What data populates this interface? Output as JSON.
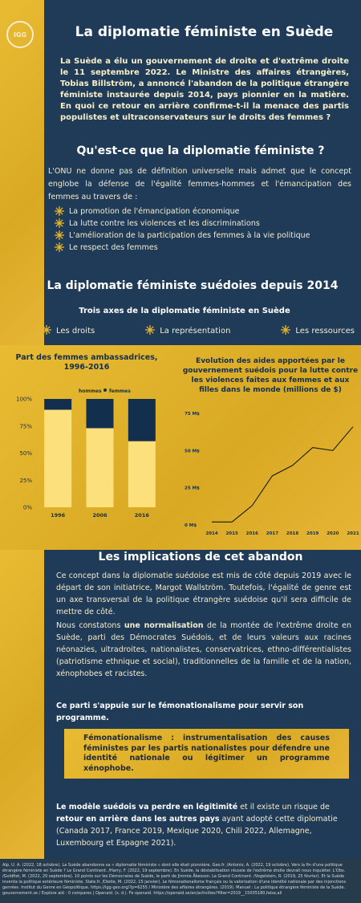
{
  "header": {
    "logo": "IGG",
    "title": "La diplomatie féministe en Suède"
  },
  "intro": "La Suède a élu un gouvernement de droite et d'extrême droite le 11 septembre 2022. Le Ministre des affaires étrangères, Tobias Billström, a annoncé l'abandon de la politique étrangère féministe instaurée depuis 2014, pays pionnier en la matière. En quoi ce retour en arrière confirme-t-il la menace des partis populistes et ultraconservateurs sur le droits des femmes ?",
  "section1": {
    "heading": "Qu'est-ce que la diplomatie féministe ?",
    "text": "L'ONU ne donne pas de définition universelle mais admet que le concept englobe la défense de l'égalité femmes-hommes et l'émancipation des femmes au travers de :",
    "items": [
      "La promotion de l'émancipation économique",
      "La lutte contre les violences et les discriminations",
      "L'amélioration de la participation des femmes à la vie politique",
      "Le respect des femmes"
    ]
  },
  "section2": {
    "heading": "La diplomatie féministe suédoies depuis 2014",
    "subheading": "Trois axes de la diplomatie féministe en Suède",
    "axes": [
      "Les droits",
      "La représentation",
      "Les ressources"
    ]
  },
  "charts": [
    {
      "type": "stacked_bar",
      "title_lines": [
        "Part des femmes ambassadrices,",
        "1996-2016"
      ],
      "categories": [
        "1996",
        "2006",
        "2016"
      ],
      "series": [
        {
          "name": "hommes",
          "color": "#fbe07c",
          "values": [
            90,
            73,
            61
          ]
        },
        {
          "name": "femmes",
          "color": "#12304d",
          "values": [
            10,
            27,
            39
          ]
        }
      ],
      "ylim": [
        0,
        100
      ],
      "yticks": [
        {
          "value": 0,
          "label": "0%"
        },
        {
          "value": 25,
          "label": "25%"
        },
        {
          "value": 50,
          "label": "50%"
        },
        {
          "value": 75,
          "label": "75%"
        },
        {
          "value": 100,
          "label": "100%"
        }
      ]
    },
    {
      "type": "line",
      "title_lines": [
        "Evolution des aides apportées par le",
        "gouvernement suédois pour la lutte contre",
        "les violences faites aux femmes et aux",
        "filles dans le monde (millions de $)"
      ],
      "categories": [
        "2014",
        "2015",
        "2016",
        "2017",
        "2018",
        "2019",
        "2020",
        "2021"
      ],
      "values": [
        2,
        2,
        13,
        33,
        40,
        52,
        50,
        66
      ],
      "color": "#1a1a1a",
      "ylim": [
        0,
        75
      ],
      "yticks": [
        {
          "value": 0,
          "label": "0 M$"
        },
        {
          "value": 25,
          "label": "25 M$"
        },
        {
          "value": 50,
          "label": "50 M$"
        },
        {
          "value": 75,
          "label": "75 M$"
        }
      ]
    }
  ],
  "section3": {
    "heading": "Les implications de cet abandon",
    "p1": "Ce concept dans la diplomatie suédoise est mis de côté depuis 2019 avec le départ de son initiatrice, Margot Wallström. Toutefois, l'égalité de genre est un axe transversal de la politique étrangère suédoise qu'il sera difficile de mettre de côté.",
    "p2": [
      "Nous constatons ",
      "une normalisation",
      " de la montée de l'extrême droite en Suède, parti des Démocrates Suédois, et de leurs valeurs aux racines néonazies, ultradroites, nationalistes, conservatrices, ethno-différentialistes (patriotisme ethnique et social), traditionnelles de la famille et de la nation, xénophobes et racistes."
    ],
    "p3": "Ce parti s'appuie sur le fémonationalisme pour servir son programme.",
    "quote": "Fémonationalisme : instrumentalisation des causes féministes par les partis nationalistes pour défendre une identité nationale ou légitimer un programme xénophobe.",
    "p4": [
      "Le modèle suédois va perdre en légitimité",
      "  et il existe un risque de ",
      "retour en arrière dans les autres pays",
      " ayant adopté cette diplomatie (Canada 2017, France 2019, Mexique 2020, Chili 2022, Allemagne, Luxembourg et Espagne 2021)."
    ]
  },
  "references": "Alp, U. A. (2022, 18 octobre). La Suède abandonne sa « diplomatie féministe » dont elle était pionnière. Geo.fr. /Antonio, A. (2022, 19 octobre). Vers la fin d'une politique étrangère féministe en Suède ? Le Grand Continent. /Harry, F. (2022, 19 septembre). En Suède, la déstabilisation réussie de l'extrême droite devrait nous inquiéter. L'Obs. /Goldfiet, M. (2022, 20 septembre). 10 points sur les Démocrates de Suède, le parti de Jimmie Åkesson. Le Grand Continent. /Vogelstein, R. (2019, 25 février). Et la Suède inventa la politique extérieure féministe. Slate.fr. /Dietle, M. (2022, 15 janvier). Le fémonationalisme français ou la valorisation d'une identité nationale par des injonctions genrées. Institut du Genre en Géopolitique. https://igg-geo.org/?p=6255 / Ministère des affaires étrangères. (2019). Manuel : La politique étrangère féministe de la Suède. gouvernement.se / Explore aid - 0 compares | Openaid. (s. d.). Fe openaid. https://openaid.se/en/activities?filter=2019__15035180,false,all"
}
